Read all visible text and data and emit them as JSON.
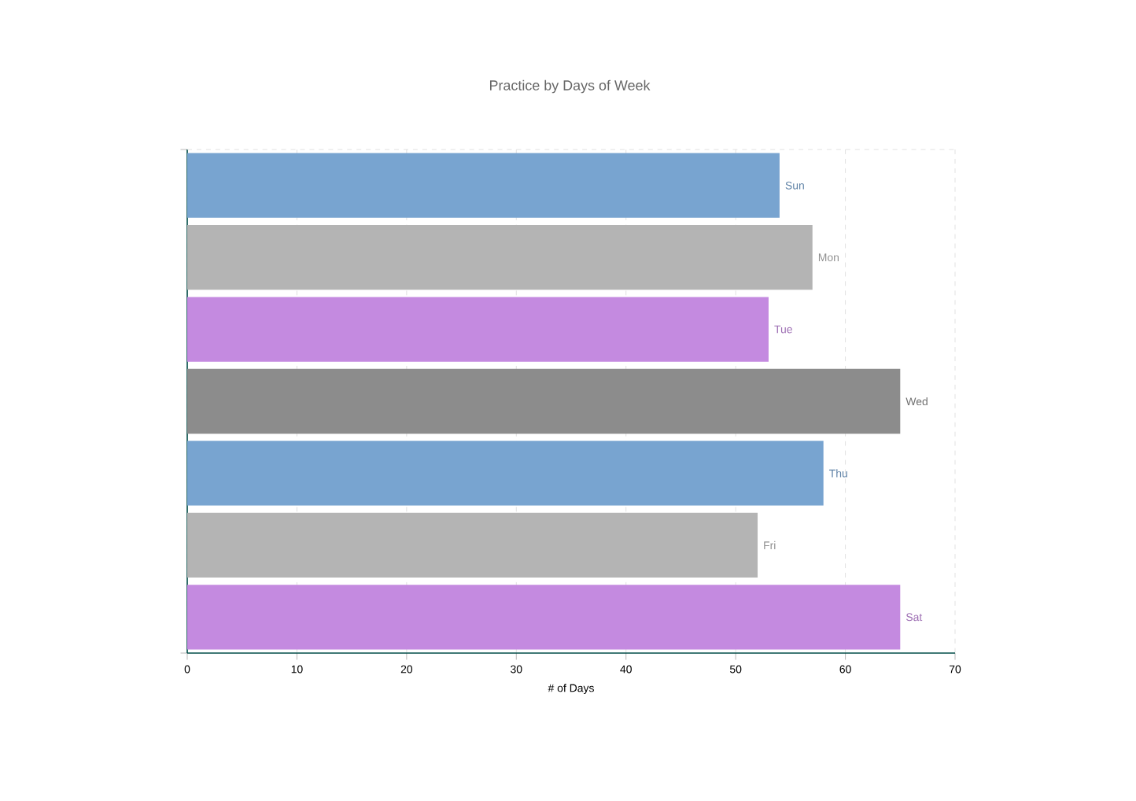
{
  "chart_data": {
    "type": "bar",
    "orientation": "horizontal",
    "title": "Practice by Days of Week",
    "xlabel": "# of Days",
    "categories": [
      "Sun",
      "Mon",
      "Tue",
      "Wed",
      "Thu",
      "Fri",
      "Sat"
    ],
    "values": [
      54,
      57,
      53,
      65,
      58,
      52,
      65
    ],
    "colors": [
      "#78a4d0",
      "#b4b4b4",
      "#c48ae0",
      "#8c8c8c",
      "#78a4d0",
      "#b4b4b4",
      "#c48ae0"
    ],
    "xlim": [
      0,
      70
    ],
    "xticks": [
      0,
      10,
      20,
      30,
      40,
      50,
      60,
      70
    ],
    "grid": "x"
  }
}
